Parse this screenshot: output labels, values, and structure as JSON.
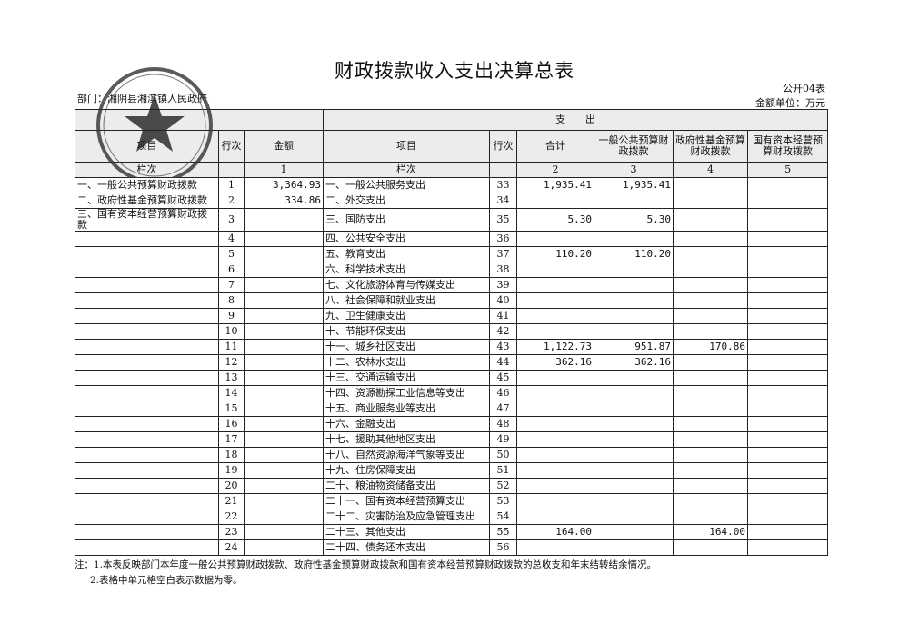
{
  "title": "财政拨款收入支出决算总表",
  "form_code": "公开04表",
  "unit": "金额单位：万元",
  "department": "部门：湘阴县湘滨镇人民政府",
  "seal_text": "湘阴县湘滨镇人民政府",
  "header": {
    "expenditure_group": "支　　出",
    "col_item": "项目",
    "col_line": "行次",
    "col_amount": "金额",
    "col_item2": "项目",
    "col_line2": "行次",
    "col_total": "合计",
    "col_general": "一般公共预算财政拨款",
    "col_fund": "政府性基金预算财政拨款",
    "col_state": "国有资本经营预算财政拨款",
    "row_label": "栏次",
    "row_label2": "栏次",
    "idx1": "1",
    "idx2": "2",
    "idx3": "3",
    "idx4": "4",
    "idx5": "5"
  },
  "rows": [
    {
      "in_item": "一、一般公共预算财政拨款",
      "in_line": "1",
      "in_amount": "3,364.93",
      "out_item": "一、一般公共服务支出",
      "out_line": "33",
      "total": "1,935.41",
      "general": "1,935.41",
      "fund": "",
      "state": ""
    },
    {
      "in_item": "二、政府性基金预算财政拨款",
      "in_line": "2",
      "in_amount": "334.86",
      "out_item": "二、外交支出",
      "out_line": "34",
      "total": "",
      "general": "",
      "fund": "",
      "state": ""
    },
    {
      "in_item": "三、国有资本经营预算财政拨款",
      "in_line": "3",
      "in_amount": "",
      "out_item": "三、国防支出",
      "out_line": "35",
      "total": "5.30",
      "general": "5.30",
      "fund": "",
      "state": ""
    },
    {
      "in_item": "",
      "in_line": "4",
      "in_amount": "",
      "out_item": "四、公共安全支出",
      "out_line": "36",
      "total": "",
      "general": "",
      "fund": "",
      "state": ""
    },
    {
      "in_item": "",
      "in_line": "5",
      "in_amount": "",
      "out_item": "五、教育支出",
      "out_line": "37",
      "total": "110.20",
      "general": "110.20",
      "fund": "",
      "state": ""
    },
    {
      "in_item": "",
      "in_line": "6",
      "in_amount": "",
      "out_item": "六、科学技术支出",
      "out_line": "38",
      "total": "",
      "general": "",
      "fund": "",
      "state": ""
    },
    {
      "in_item": "",
      "in_line": "7",
      "in_amount": "",
      "out_item": "七、文化旅游体育与传媒支出",
      "out_line": "39",
      "total": "",
      "general": "",
      "fund": "",
      "state": ""
    },
    {
      "in_item": "",
      "in_line": "8",
      "in_amount": "",
      "out_item": "八、社会保障和就业支出",
      "out_line": "40",
      "total": "",
      "general": "",
      "fund": "",
      "state": ""
    },
    {
      "in_item": "",
      "in_line": "9",
      "in_amount": "",
      "out_item": "九、卫生健康支出",
      "out_line": "41",
      "total": "",
      "general": "",
      "fund": "",
      "state": ""
    },
    {
      "in_item": "",
      "in_line": "10",
      "in_amount": "",
      "out_item": "十、节能环保支出",
      "out_line": "42",
      "total": "",
      "general": "",
      "fund": "",
      "state": ""
    },
    {
      "in_item": "",
      "in_line": "11",
      "in_amount": "",
      "out_item": "十一、城乡社区支出",
      "out_line": "43",
      "total": "1,122.73",
      "general": "951.87",
      "fund": "170.86",
      "state": ""
    },
    {
      "in_item": "",
      "in_line": "12",
      "in_amount": "",
      "out_item": "十二、农林水支出",
      "out_line": "44",
      "total": "362.16",
      "general": "362.16",
      "fund": "",
      "state": ""
    },
    {
      "in_item": "",
      "in_line": "13",
      "in_amount": "",
      "out_item": "十三、交通运输支出",
      "out_line": "45",
      "total": "",
      "general": "",
      "fund": "",
      "state": ""
    },
    {
      "in_item": "",
      "in_line": "14",
      "in_amount": "",
      "out_item": "十四、资源勘探工业信息等支出",
      "out_line": "46",
      "total": "",
      "general": "",
      "fund": "",
      "state": ""
    },
    {
      "in_item": "",
      "in_line": "15",
      "in_amount": "",
      "out_item": "十五、商业服务业等支出",
      "out_line": "47",
      "total": "",
      "general": "",
      "fund": "",
      "state": ""
    },
    {
      "in_item": "",
      "in_line": "16",
      "in_amount": "",
      "out_item": "十六、金融支出",
      "out_line": "48",
      "total": "",
      "general": "",
      "fund": "",
      "state": ""
    },
    {
      "in_item": "",
      "in_line": "17",
      "in_amount": "",
      "out_item": "十七、援助其他地区支出",
      "out_line": "49",
      "total": "",
      "general": "",
      "fund": "",
      "state": ""
    },
    {
      "in_item": "",
      "in_line": "18",
      "in_amount": "",
      "out_item": "十八、自然资源海洋气象等支出",
      "out_line": "50",
      "total": "",
      "general": "",
      "fund": "",
      "state": ""
    },
    {
      "in_item": "",
      "in_line": "19",
      "in_amount": "",
      "out_item": "十九、住房保障支出",
      "out_line": "51",
      "total": "",
      "general": "",
      "fund": "",
      "state": ""
    },
    {
      "in_item": "",
      "in_line": "20",
      "in_amount": "",
      "out_item": "二十、粮油物资储备支出",
      "out_line": "52",
      "total": "",
      "general": "",
      "fund": "",
      "state": ""
    },
    {
      "in_item": "",
      "in_line": "21",
      "in_amount": "",
      "out_item": "二十一、国有资本经营预算支出",
      "out_line": "53",
      "total": "",
      "general": "",
      "fund": "",
      "state": ""
    },
    {
      "in_item": "",
      "in_line": "22",
      "in_amount": "",
      "out_item": "二十二、灾害防治及应急管理支出",
      "out_line": "54",
      "total": "",
      "general": "",
      "fund": "",
      "state": ""
    },
    {
      "in_item": "",
      "in_line": "23",
      "in_amount": "",
      "out_item": "二十三、其他支出",
      "out_line": "55",
      "total": "164.00",
      "general": "",
      "fund": "164.00",
      "state": ""
    },
    {
      "in_item": "",
      "in_line": "24",
      "in_amount": "",
      "out_item": "二十四、债务还本支出",
      "out_line": "56",
      "total": "",
      "general": "",
      "fund": "",
      "state": ""
    }
  ],
  "notes": [
    "注：1.本表反映部门本年度一般公共预算财政拨款、政府性基金预算财政拨款和国有资本经营预算财政拨款的总收支和年末结转结余情况。",
    "2.表格中单元格空白表示数据为零。"
  ]
}
